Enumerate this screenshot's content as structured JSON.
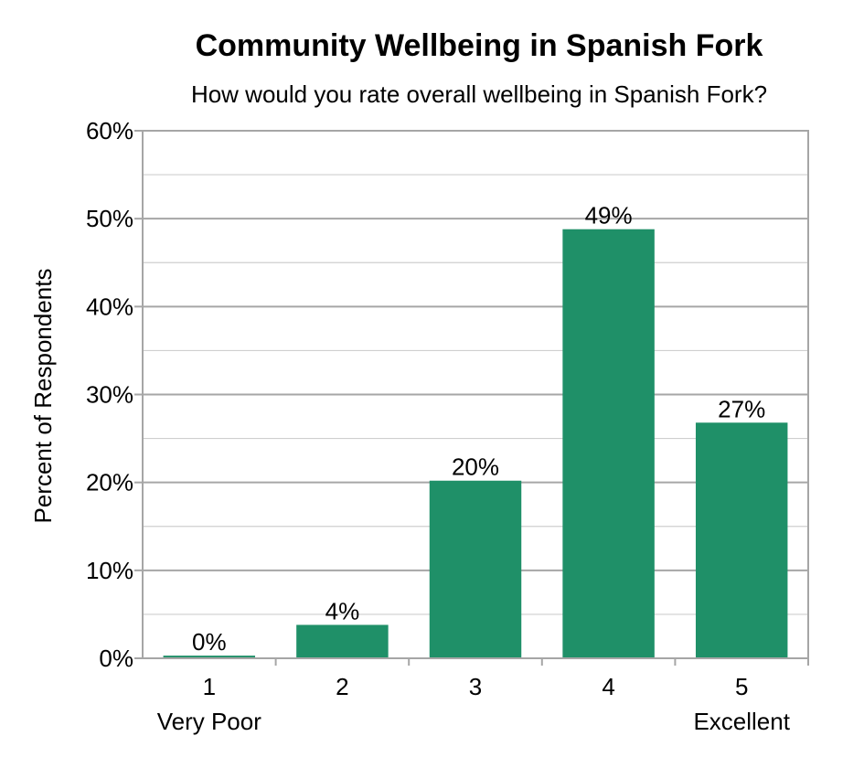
{
  "chart_data": {
    "type": "bar",
    "title": "Community Wellbeing in Spanish Fork",
    "subtitle": "How would you rate overall wellbeing in Spanish Fork?",
    "ylabel": "Percent of Respondents",
    "xlabel": "",
    "categories": [
      "1",
      "2",
      "3",
      "4",
      "5"
    ],
    "category_sublabels": [
      "Very Poor",
      "",
      "",
      "",
      "Excellent"
    ],
    "values": [
      0.3,
      3.8,
      20.2,
      48.8,
      26.8
    ],
    "data_labels": [
      "0%",
      "4%",
      "20%",
      "49%",
      "27%"
    ],
    "ylim": [
      0,
      60
    ],
    "yticks": [
      0,
      10,
      20,
      30,
      40,
      50,
      60
    ],
    "ytick_labels": [
      "0%",
      "10%",
      "20%",
      "30%",
      "40%",
      "50%",
      "60%"
    ],
    "grid": true,
    "legend": "none",
    "bar_color": "#1f9068",
    "gridline_major_color": "#a6a6a6",
    "gridline_minor_color": "#cfcfcf"
  }
}
